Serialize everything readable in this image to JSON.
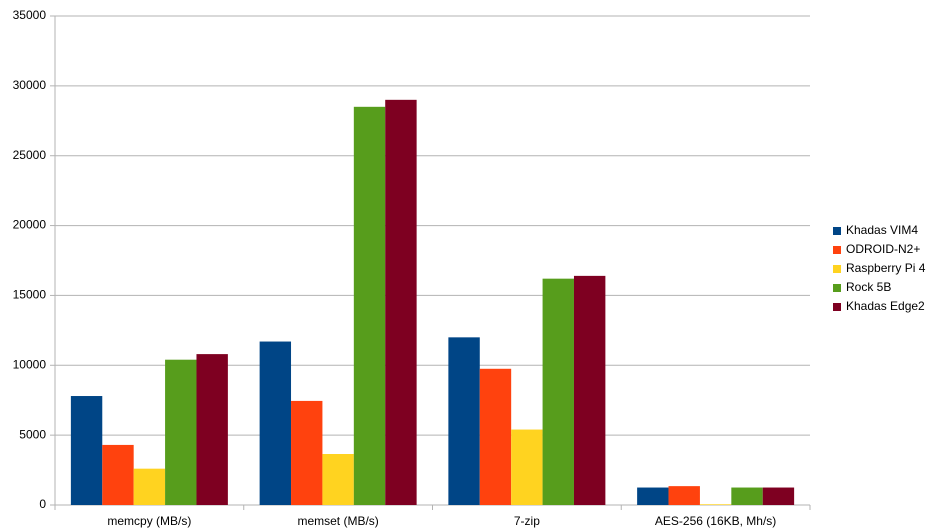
{
  "chart_data": {
    "type": "bar",
    "categories": [
      "memcpy (MB/s)",
      "memset (MB/s)",
      "7-zip",
      "AES-256 (16KB, Mh/s)"
    ],
    "series": [
      {
        "name": "Khadas VIM4",
        "color": "#004586",
        "values": [
          7800,
          11700,
          12000,
          1250
        ]
      },
      {
        "name": "ODROID-N2+",
        "color": "#ff420e",
        "values": [
          4300,
          7450,
          9750,
          1350
        ]
      },
      {
        "name": "Raspberry Pi 4",
        "color": "#ffd320",
        "values": [
          2600,
          3650,
          5400,
          50
        ]
      },
      {
        "name": "Rock 5B",
        "color": "#579d1c",
        "values": [
          10400,
          28500,
          16200,
          1250
        ]
      },
      {
        "name": "Khadas Edge2",
        "color": "#7e0021",
        "values": [
          10800,
          29000,
          16400,
          1250
        ]
      }
    ],
    "ylim": [
      0,
      35000
    ],
    "yticks": [
      0,
      5000,
      10000,
      15000,
      20000,
      25000,
      30000,
      35000
    ],
    "grid": true,
    "legend": "right"
  }
}
